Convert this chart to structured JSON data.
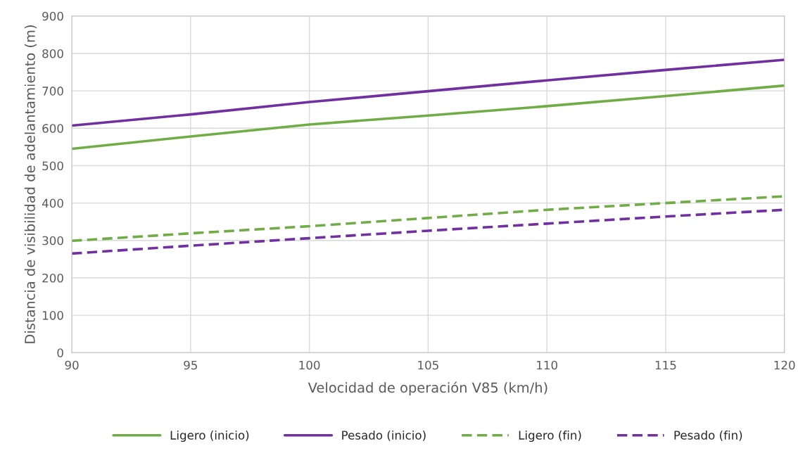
{
  "chart_data": {
    "type": "line",
    "xlabel": "Velocidad de operación V85 (km/h)",
    "ylabel": "Distancia de visibilidad de adelantamiento (m)",
    "x": [
      90,
      95,
      100,
      105,
      110,
      115,
      120
    ],
    "series": [
      {
        "name": "Ligero (inicio)",
        "color": "#70ad47",
        "line_style": "solid",
        "values": [
          545,
          578,
          610,
          634,
          659,
          686,
          714
        ]
      },
      {
        "name": "Pesado (inicio)",
        "color": "#7030a0",
        "line_style": "solid",
        "values": [
          607,
          637,
          670,
          699,
          728,
          756,
          783
        ]
      },
      {
        "name": "Ligero (fin)",
        "color": "#70ad47",
        "line_style": "dashed",
        "values": [
          299,
          319,
          338,
          360,
          382,
          400,
          418
        ]
      },
      {
        "name": "Pesado (fin)",
        "color": "#7030a0",
        "line_style": "dashed",
        "values": [
          265,
          286,
          306,
          326,
          345,
          364,
          382
        ]
      }
    ],
    "xlim": [
      90,
      120
    ],
    "xticks": [
      90,
      95,
      100,
      105,
      110,
      115,
      120
    ],
    "ylim": [
      0,
      900
    ],
    "yticks": [
      0,
      100,
      200,
      300,
      400,
      500,
      600,
      700,
      800,
      900
    ],
    "grid": true,
    "legend": "bottom",
    "marker": "none"
  }
}
